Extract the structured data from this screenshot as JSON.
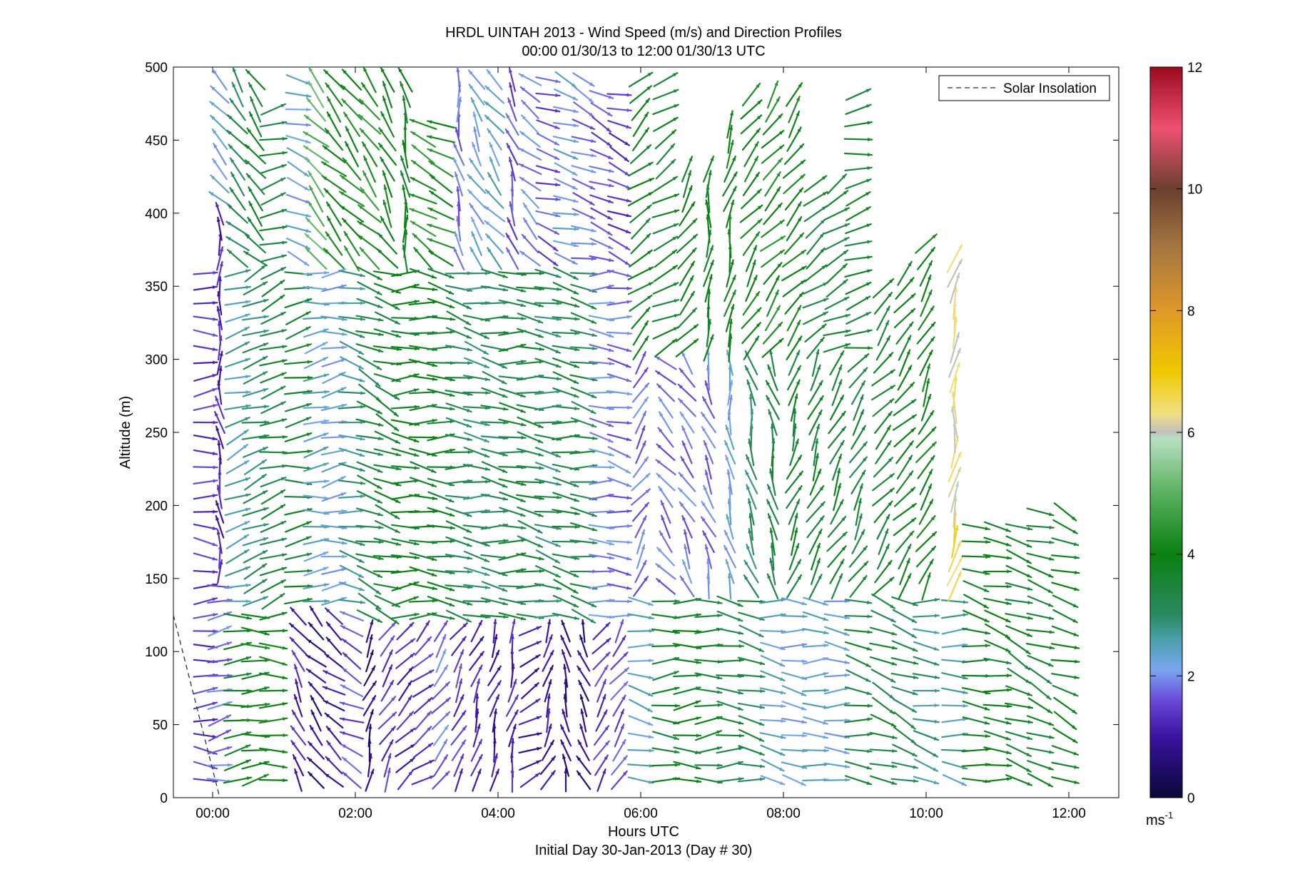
{
  "chart_data": {
    "type": "quiver",
    "title": "HRDL UINTAH 2013 - Wind Speed (m/s) and Direction Profiles",
    "subtitle": "00:00 01/30/13 to 12:00 01/30/13  UTC",
    "xlabel": "Hours UTC",
    "xlabel2": "Initial Day 30-Jan-2013 (Day # 30)",
    "ylabel": "Altitude (m)",
    "xlim_hours": [
      -0.55,
      12.7
    ],
    "ylim": [
      0,
      500
    ],
    "x_ticks": [
      {
        "hour": 0,
        "label": "00:00"
      },
      {
        "hour": 2,
        "label": "02:00"
      },
      {
        "hour": 4,
        "label": "04:00"
      },
      {
        "hour": 6,
        "label": "06:00"
      },
      {
        "hour": 8,
        "label": "08:00"
      },
      {
        "hour": 10,
        "label": "10:00"
      },
      {
        "hour": 12,
        "label": "12:00"
      }
    ],
    "y_ticks": [
      0,
      50,
      100,
      150,
      200,
      250,
      300,
      350,
      400,
      450,
      500
    ],
    "legend": {
      "label": "Solar Insolation",
      "position": "top-right",
      "style": "dashed"
    },
    "solar_insolation": {
      "x": [
        -0.55,
        0.1
      ],
      "y": [
        125,
        0
      ]
    },
    "colorbar": {
      "min": 0,
      "max": 12,
      "ticks": [
        0,
        2,
        4,
        6,
        8,
        10,
        12
      ],
      "unit_label": "ms",
      "unit_exponent": "-1",
      "stops": [
        {
          "v": 0,
          "c": "#080838"
        },
        {
          "v": 1,
          "c": "#3a12a0"
        },
        {
          "v": 1.6,
          "c": "#6a48d8"
        },
        {
          "v": 2.1,
          "c": "#7aa6f0"
        },
        {
          "v": 2.6,
          "c": "#4aa0a8"
        },
        {
          "v": 3.0,
          "c": "#2a8a60"
        },
        {
          "v": 4.0,
          "c": "#0a8010"
        },
        {
          "v": 5.0,
          "c": "#5ab060"
        },
        {
          "v": 5.9,
          "c": "#b8e0c0"
        },
        {
          "v": 6.0,
          "c": "#c0c0c0"
        },
        {
          "v": 6.3,
          "c": "#f0e080"
        },
        {
          "v": 7.0,
          "c": "#f0c800"
        },
        {
          "v": 8.0,
          "c": "#e09828"
        },
        {
          "v": 9.0,
          "c": "#a87840"
        },
        {
          "v": 10.0,
          "c": "#6a4030"
        },
        {
          "v": 11.0,
          "c": "#f05070"
        },
        {
          "v": 12.0,
          "c": "#9a0a20"
        }
      ]
    },
    "profiles": [
      {
        "hour": -0.1,
        "ymin": 12,
        "ymax": 365,
        "zones": [
          [
            0,
            360,
            1.4,
            90,
            90
          ]
        ]
      },
      {
        "hour": 0.1,
        "ymin": 12,
        "ymax": 500,
        "zones": [
          [
            0,
            150,
            1.8,
            80,
            80
          ],
          [
            150,
            400,
            1.2,
            -10,
            0
          ],
          [
            400,
            500,
            2.2,
            -40,
            -40
          ]
        ]
      },
      {
        "hour": 0.35,
        "ymin": 12,
        "ymax": 500,
        "zones": [
          [
            0,
            130,
            3.8,
            85,
            85
          ],
          [
            130,
            360,
            2.6,
            70,
            70
          ],
          [
            360,
            500,
            3.2,
            -40,
            -40
          ]
        ]
      },
      {
        "hour": 0.6,
        "ymin": 12,
        "ymax": 500,
        "zones": [
          [
            0,
            130,
            4.0,
            85,
            85
          ],
          [
            130,
            360,
            3.0,
            70,
            70
          ],
          [
            360,
            500,
            3.6,
            -40,
            -40
          ]
        ]
      },
      {
        "hour": 0.85,
        "ymin": 12,
        "ymax": 480,
        "zones": [
          [
            0,
            130,
            4.0,
            88,
            88
          ],
          [
            130,
            360,
            3.4,
            72,
            72
          ],
          [
            360,
            480,
            3.4,
            70,
            70
          ]
        ]
      },
      {
        "hour": 1.2,
        "ymin": 12,
        "ymax": 500,
        "zones": [
          [
            0,
            130,
            1.2,
            -30,
            -30
          ],
          [
            130,
            360,
            3.6,
            80,
            80
          ],
          [
            360,
            500,
            2.2,
            110,
            110
          ]
        ]
      },
      {
        "hour": 1.45,
        "ymin": 12,
        "ymax": 500,
        "zones": [
          [
            0,
            130,
            0.8,
            -40,
            -40
          ],
          [
            130,
            360,
            2.4,
            80,
            80
          ],
          [
            360,
            500,
            5.0,
            -40,
            -40
          ]
        ]
      },
      {
        "hour": 1.7,
        "ymin": 12,
        "ymax": 500,
        "zones": [
          [
            0,
            130,
            1.0,
            -50,
            -50
          ],
          [
            130,
            360,
            2.2,
            80,
            80
          ],
          [
            360,
            500,
            4.0,
            -40,
            -40
          ]
        ]
      },
      {
        "hour": 1.95,
        "ymin": 12,
        "ymax": 500,
        "zones": [
          [
            0,
            130,
            1.6,
            -60,
            -60
          ],
          [
            130,
            360,
            2.8,
            100,
            100
          ],
          [
            360,
            500,
            4.2,
            -40,
            -40
          ]
        ]
      },
      {
        "hour": 2.2,
        "ymin": 12,
        "ymax": 500,
        "zones": [
          [
            0,
            120,
            0.7,
            20,
            20
          ],
          [
            120,
            360,
            3.4,
            110,
            110
          ],
          [
            360,
            500,
            4.4,
            -40,
            -40
          ]
        ]
      },
      {
        "hour": 2.45,
        "ymin": 12,
        "ymax": 500,
        "zones": [
          [
            0,
            120,
            1.4,
            30,
            30
          ],
          [
            120,
            360,
            3.6,
            110,
            110
          ],
          [
            360,
            500,
            4.0,
            -30,
            -30
          ]
        ]
      },
      {
        "hour": 2.7,
        "ymin": 12,
        "ymax": 500,
        "zones": [
          [
            0,
            120,
            1.2,
            40,
            40
          ],
          [
            120,
            360,
            3.8,
            90,
            90
          ],
          [
            360,
            500,
            3.8,
            -10,
            -10
          ]
        ]
      },
      {
        "hour": 2.95,
        "ymin": 12,
        "ymax": 470,
        "zones": [
          [
            0,
            120,
            1.4,
            50,
            50
          ],
          [
            120,
            360,
            3.8,
            95,
            95
          ],
          [
            360,
            470,
            4.4,
            -60,
            -60
          ]
        ]
      },
      {
        "hour": 3.2,
        "ymin": 12,
        "ymax": 470,
        "zones": [
          [
            0,
            120,
            1.8,
            40,
            40
          ],
          [
            120,
            360,
            3.6,
            95,
            95
          ],
          [
            360,
            470,
            4.2,
            -60,
            -60
          ]
        ]
      },
      {
        "hour": 3.45,
        "ymin": 12,
        "ymax": 500,
        "zones": [
          [
            0,
            120,
            1.4,
            30,
            30
          ],
          [
            120,
            360,
            3.2,
            100,
            100
          ],
          [
            360,
            500,
            1.8,
            -10,
            -10
          ]
        ]
      },
      {
        "hour": 3.7,
        "ymin": 12,
        "ymax": 500,
        "zones": [
          [
            0,
            120,
            1.2,
            20,
            20
          ],
          [
            120,
            360,
            3.0,
            100,
            100
          ],
          [
            360,
            500,
            2.2,
            -30,
            -30
          ]
        ]
      },
      {
        "hour": 3.95,
        "ymin": 12,
        "ymax": 500,
        "zones": [
          [
            0,
            120,
            1.0,
            15,
            15
          ],
          [
            120,
            360,
            3.2,
            100,
            100
          ],
          [
            360,
            500,
            2.4,
            -40,
            -40
          ]
        ]
      },
      {
        "hour": 4.2,
        "ymin": 12,
        "ymax": 500,
        "zones": [
          [
            0,
            120,
            1.2,
            10,
            10
          ],
          [
            120,
            360,
            3.4,
            95,
            95
          ],
          [
            360,
            500,
            1.6,
            -20,
            -20
          ]
        ]
      },
      {
        "hour": 4.45,
        "ymin": 12,
        "ymax": 500,
        "zones": [
          [
            0,
            120,
            1.0,
            60,
            60
          ],
          [
            120,
            360,
            3.4,
            100,
            100
          ],
          [
            360,
            500,
            2.0,
            -50,
            -50
          ]
        ]
      },
      {
        "hour": 4.7,
        "ymin": 12,
        "ymax": 500,
        "zones": [
          [
            0,
            120,
            1.0,
            20,
            20
          ],
          [
            120,
            360,
            3.0,
            100,
            100
          ],
          [
            360,
            500,
            1.6,
            110,
            110
          ]
        ]
      },
      {
        "hour": 4.95,
        "ymin": 12,
        "ymax": 500,
        "zones": [
          [
            0,
            120,
            0.8,
            -10,
            -10
          ],
          [
            120,
            360,
            3.4,
            100,
            100
          ],
          [
            360,
            500,
            2.2,
            110,
            110
          ]
        ]
      },
      {
        "hour": 5.2,
        "ymin": 12,
        "ymax": 500,
        "zones": [
          [
            0,
            120,
            0.8,
            -20,
            -20
          ],
          [
            120,
            360,
            3.2,
            100,
            100
          ],
          [
            360,
            500,
            1.8,
            110,
            110
          ]
        ]
      },
      {
        "hour": 5.45,
        "ymin": 12,
        "ymax": 490,
        "zones": [
          [
            0,
            120,
            1.4,
            30,
            30
          ],
          [
            120,
            360,
            2.0,
            95,
            95
          ],
          [
            360,
            490,
            1.6,
            110,
            110
          ]
        ]
      },
      {
        "hour": 5.7,
        "ymin": 12,
        "ymax": 490,
        "zones": [
          [
            0,
            120,
            1.6,
            30,
            30
          ],
          [
            120,
            360,
            1.8,
            100,
            100
          ],
          [
            360,
            490,
            1.4,
            110,
            110
          ]
        ]
      },
      {
        "hour": 6.0,
        "ymin": 12,
        "ymax": 500,
        "zones": [
          [
            0,
            140,
            2.4,
            100,
            100
          ],
          [
            140,
            300,
            1.8,
            30,
            30
          ],
          [
            300,
            500,
            3.8,
            50,
            50
          ]
        ]
      },
      {
        "hour": 6.35,
        "ymin": 12,
        "ymax": 500,
        "zones": [
          [
            0,
            140,
            3.6,
            90,
            90
          ],
          [
            140,
            300,
            1.8,
            -40,
            -40
          ],
          [
            300,
            500,
            3.6,
            60,
            60
          ]
        ]
      },
      {
        "hour": 6.65,
        "ymin": 12,
        "ymax": 440,
        "zones": [
          [
            0,
            140,
            3.8,
            90,
            90
          ],
          [
            140,
            300,
            1.8,
            -30,
            -30
          ],
          [
            300,
            440,
            3.8,
            35,
            35
          ]
        ]
      },
      {
        "hour": 6.95,
        "ymin": 12,
        "ymax": 440,
        "zones": [
          [
            0,
            140,
            3.6,
            90,
            90
          ],
          [
            140,
            300,
            1.8,
            -20,
            -20
          ],
          [
            300,
            440,
            3.8,
            10,
            10
          ]
        ]
      },
      {
        "hour": 7.25,
        "ymin": 12,
        "ymax": 470,
        "zones": [
          [
            0,
            140,
            3.4,
            95,
            95
          ],
          [
            140,
            300,
            2.2,
            -10,
            -10
          ],
          [
            300,
            470,
            4.0,
            15,
            15
          ]
        ]
      },
      {
        "hour": 7.55,
        "ymin": 12,
        "ymax": 490,
        "zones": [
          [
            0,
            140,
            3.2,
            100,
            100
          ],
          [
            140,
            300,
            3.0,
            -15,
            -15
          ],
          [
            300,
            490,
            4.0,
            35,
            35
          ]
        ]
      },
      {
        "hour": 7.85,
        "ymin": 12,
        "ymax": 490,
        "zones": [
          [
            0,
            140,
            2.4,
            100,
            100
          ],
          [
            140,
            300,
            3.4,
            -15,
            -15
          ],
          [
            300,
            490,
            4.2,
            40,
            40
          ]
        ]
      },
      {
        "hour": 8.15,
        "ymin": 12,
        "ymax": 490,
        "zones": [
          [
            0,
            140,
            2.2,
            100,
            100
          ],
          [
            140,
            300,
            3.6,
            20,
            20
          ],
          [
            300,
            490,
            4.0,
            40,
            40
          ]
        ]
      },
      {
        "hour": 8.45,
        "ymin": 12,
        "ymax": 420,
        "zones": [
          [
            0,
            140,
            2.4,
            95,
            95
          ],
          [
            140,
            300,
            3.6,
            25,
            25
          ],
          [
            300,
            420,
            3.4,
            50,
            50
          ]
        ]
      },
      {
        "hour": 8.75,
        "ymin": 12,
        "ymax": 420,
        "zones": [
          [
            0,
            140,
            2.2,
            95,
            95
          ],
          [
            140,
            300,
            3.6,
            30,
            30
          ],
          [
            300,
            420,
            3.4,
            60,
            60
          ]
        ]
      },
      {
        "hour": 9.05,
        "ymin": 12,
        "ymax": 490,
        "zones": [
          [
            0,
            140,
            3.4,
            100,
            100
          ],
          [
            140,
            300,
            3.4,
            30,
            30
          ],
          [
            300,
            490,
            3.6,
            75,
            75
          ]
        ]
      },
      {
        "hour": 9.4,
        "ymin": 12,
        "ymax": 350,
        "zones": [
          [
            0,
            140,
            3.4,
            110,
            110
          ],
          [
            140,
            350,
            3.6,
            40,
            40
          ]
        ]
      },
      {
        "hour": 9.7,
        "ymin": 12,
        "ymax": 360,
        "zones": [
          [
            0,
            140,
            3.2,
            110,
            110
          ],
          [
            140,
            360,
            3.8,
            40,
            40
          ]
        ]
      },
      {
        "hour": 10.0,
        "ymin": 12,
        "ymax": 380,
        "zones": [
          [
            0,
            140,
            2.8,
            100,
            100
          ],
          [
            140,
            380,
            4.0,
            30,
            30
          ]
        ]
      },
      {
        "hour": 10.4,
        "ymin": 12,
        "ymax": 370,
        "zones": [
          [
            0,
            140,
            2.6,
            95,
            95
          ],
          [
            140,
            190,
            6.6,
            10,
            10
          ],
          [
            190,
            370,
            6.2,
            10,
            10
          ]
        ]
      },
      {
        "hour": 10.7,
        "ymin": 12,
        "ymax": 190,
        "zones": [
          [
            0,
            190,
            3.8,
            100,
            100
          ]
        ]
      },
      {
        "hour": 11.0,
        "ymin": 12,
        "ymax": 190,
        "zones": [
          [
            0,
            190,
            3.8,
            100,
            100
          ]
        ]
      },
      {
        "hour": 11.3,
        "ymin": 12,
        "ymax": 195,
        "zones": [
          [
            0,
            195,
            3.6,
            110,
            110
          ]
        ]
      },
      {
        "hour": 11.6,
        "ymin": 12,
        "ymax": 200,
        "zones": [
          [
            0,
            200,
            3.6,
            110,
            110
          ]
        ]
      },
      {
        "hour": 11.95,
        "ymin": 12,
        "ymax": 200,
        "zones": [
          [
            0,
            200,
            3.8,
            110,
            110
          ]
        ]
      }
    ]
  }
}
